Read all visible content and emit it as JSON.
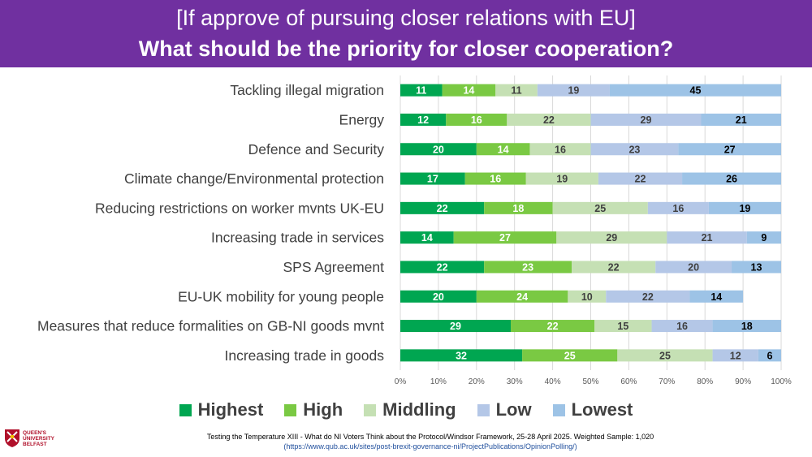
{
  "header": {
    "title": "[If approve of pursuing closer relations with EU]",
    "subtitle": "What should be the priority for closer cooperation?"
  },
  "chart_data": {
    "type": "bar",
    "orientation": "horizontal",
    "stacked": "percent",
    "categories": [
      "Tackling illegal migration",
      "Energy",
      "Defence and Security",
      "Climate change/Environmental protection",
      "Reducing restrictions on worker mvnts UK-EU",
      "Increasing trade in services",
      "SPS Agreement",
      "EU-UK mobility for young people",
      "Measures that reduce formalities on GB-NI goods mvnt",
      "Increasing trade in goods"
    ],
    "series": [
      {
        "name": "Highest",
        "color": "#00a651",
        "label_color": "#ffffff",
        "values": [
          11,
          12,
          20,
          17,
          22,
          14,
          22,
          20,
          29,
          32
        ]
      },
      {
        "name": "High",
        "color": "#7ac943",
        "label_color": "#ffffff",
        "values": [
          14,
          16,
          14,
          16,
          18,
          27,
          23,
          24,
          22,
          25
        ]
      },
      {
        "name": "Middling",
        "color": "#c5e0b4",
        "label_color": "#404040",
        "values": [
          11,
          22,
          16,
          19,
          25,
          29,
          22,
          10,
          15,
          25
        ]
      },
      {
        "name": "Low",
        "color": "#b4c7e7",
        "label_color": "#404040",
        "values": [
          19,
          29,
          23,
          22,
          16,
          21,
          20,
          22,
          16,
          12
        ]
      },
      {
        "name": "Lowest",
        "color": "#9dc3e6",
        "label_color": "#000000",
        "values": [
          45,
          21,
          27,
          26,
          19,
          9,
          13,
          14,
          18,
          6
        ]
      }
    ],
    "x_ticks": [
      "0%",
      "10%",
      "20%",
      "30%",
      "40%",
      "50%",
      "60%",
      "70%",
      "80%",
      "90%",
      "100%"
    ],
    "xlim": [
      0,
      100
    ],
    "grid": true,
    "legend": "bottom"
  },
  "footer": {
    "source": "Testing the Temperature XIII - What do NI Voters Think about the Protocol/Windsor Framework, 25-28 April 2025. Weighted Sample: 1,020",
    "link": "(https://www.qub.ac.uk/sites/post-brexit-governance-ni/ProjectPublications/OpinionPolling/)"
  },
  "logo": {
    "line1": "QUEEN'S",
    "line2": "UNIVERSITY",
    "line3": "BELFAST",
    "icon": "university-crest-icon"
  }
}
